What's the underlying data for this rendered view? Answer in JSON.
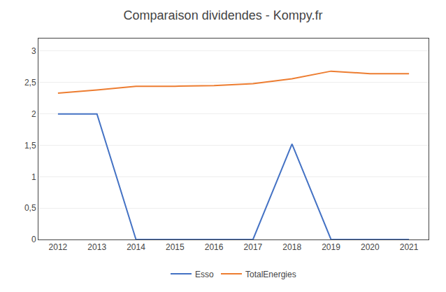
{
  "chart_data": {
    "type": "line",
    "title": "Comparaison dividendes - Kompy.fr",
    "x": [
      2012,
      2013,
      2014,
      2015,
      2016,
      2017,
      2018,
      2019,
      2020,
      2021
    ],
    "series": [
      {
        "name": "Esso",
        "color": "#4472C4",
        "values": [
          2.0,
          2.0,
          0.0,
          0.0,
          0.0,
          0.0,
          1.52,
          0.0,
          0.0,
          0.0
        ]
      },
      {
        "name": "TotalEnergies",
        "color": "#ED7D31",
        "values": [
          2.33,
          2.38,
          2.44,
          2.44,
          2.45,
          2.48,
          2.56,
          2.68,
          2.64,
          2.64
        ]
      }
    ],
    "xlim": [
      2011.5,
      2021.5
    ],
    "xticks": [
      2012,
      2013,
      2014,
      2015,
      2016,
      2017,
      2018,
      2019,
      2020,
      2021
    ],
    "ylim": [
      0,
      3.2
    ],
    "yticks": [
      0,
      {
        "value": 0.5,
        "label": "0,5"
      },
      1,
      {
        "value": 1.5,
        "label": "1,5"
      },
      2,
      {
        "value": 2.5,
        "label": "2,5"
      },
      3
    ],
    "grid": "y",
    "legend": "bottom"
  }
}
